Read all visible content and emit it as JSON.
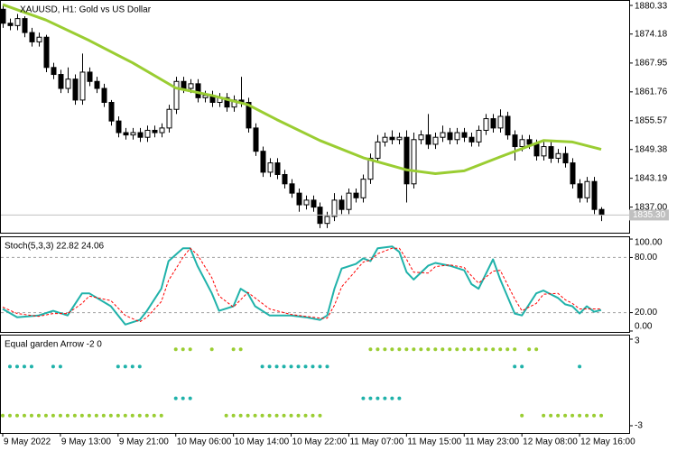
{
  "chart_data": [
    {
      "type": "candlestick",
      "title": "XAUUSD, H1:  Gold vs US Dollar",
      "xlim": [
        -0.25,
        86.875
      ],
      "ylim": [
        1831.5,
        1881.3
      ],
      "yticks": [
        1880.33,
        1874.18,
        1867.95,
        1861.76,
        1855.57,
        1849.38,
        1843.19,
        {
          "value": 1837,
          "label": "1837.00"
        }
      ],
      "xticks": [
        {
          "value": 0,
          "label": "9 May 2022"
        },
        {
          "value": 8,
          "label": "9 May 13:00"
        },
        {
          "value": 16,
          "label": "9 May 21:00"
        },
        {
          "value": 24,
          "label": "10 May 06:00"
        },
        {
          "value": 32,
          "label": "10 May 14:00"
        },
        {
          "value": 40,
          "label": "10 May 22:00"
        },
        {
          "value": 48,
          "label": "11 May 07:00"
        },
        {
          "value": 56,
          "label": "11 May 15:00"
        },
        {
          "value": 64,
          "label": "11 May 23:00"
        },
        {
          "value": 72,
          "label": "12 May 08:00"
        },
        {
          "value": 80,
          "label": "12 May 16:00"
        }
      ],
      "up_color": "#ffffff",
      "down_color": "#000000",
      "open": [
        1879.5,
        1876.5,
        1876.0,
        1877.5,
        1874.5,
        1872.5,
        1873.5,
        1867.0,
        1865.5,
        1862.5,
        1864.5,
        1860.0,
        1866.0,
        1864.0,
        1862.5,
        1859.5,
        1855.5,
        1853.0,
        1852.5,
        1853.0,
        1852.0,
        1853.5,
        1853.0,
        1854.0,
        1858.0,
        1864.0,
        1862.5,
        1863.5,
        1860.5,
        1861.0,
        1859.5,
        1860.5,
        1858.5,
        1860.0,
        1859.5,
        1854.0,
        1849.0,
        1844.5,
        1846.5,
        1844.0,
        1842.0,
        1840.0,
        1837.5,
        1838.5,
        1837.0,
        1833.5,
        1835.0,
        1838.5,
        1836.5,
        1840.0,
        1839.0,
        1843.0,
        1847.5,
        1851.0,
        1852.0,
        1851.5,
        1852.0,
        1842.0,
        1851.5,
        1852.5,
        1850.5,
        1852.0,
        1853.0,
        1851.5,
        1853.0,
        1852.0,
        1851.0,
        1853.5,
        1856.0,
        1854.0,
        1856.5,
        1852.5,
        1850.0,
        1851.5,
        1850.5,
        1848.0,
        1850.0,
        1847.5,
        1848.5,
        1846.5,
        1842.0,
        1839.0,
        1842.5,
        1836.5
      ],
      "high": [
        1880.5,
        1877.5,
        1878.5,
        1878.0,
        1875.5,
        1874.5,
        1874.0,
        1868.0,
        1866.5,
        1867.0,
        1865.5,
        1870.0,
        1867.0,
        1865.0,
        1863.5,
        1860.0,
        1856.5,
        1854.0,
        1854.0,
        1854.0,
        1854.5,
        1854.5,
        1855.0,
        1859.0,
        1865.0,
        1865.0,
        1864.5,
        1864.5,
        1862.0,
        1862.0,
        1861.5,
        1861.5,
        1861.0,
        1865.0,
        1860.5,
        1855.0,
        1850.0,
        1847.5,
        1847.5,
        1845.0,
        1843.0,
        1841.0,
        1839.5,
        1839.5,
        1838.0,
        1836.0,
        1840.0,
        1839.5,
        1841.0,
        1841.0,
        1844.0,
        1848.5,
        1852.5,
        1853.0,
        1853.5,
        1853.0,
        1853.5,
        1853.0,
        1853.5,
        1857.0,
        1853.0,
        1854.5,
        1854.0,
        1854.0,
        1854.0,
        1853.0,
        1854.5,
        1857.0,
        1857.0,
        1858.0,
        1857.5,
        1853.5,
        1852.5,
        1852.5,
        1851.5,
        1851.0,
        1851.0,
        1849.5,
        1850.0,
        1847.5,
        1843.0,
        1843.5,
        1843.5,
        1837.0
      ],
      "low": [
        1875.5,
        1875.0,
        1875.0,
        1873.5,
        1871.5,
        1871.5,
        1866.0,
        1864.5,
        1861.5,
        1861.5,
        1859.0,
        1859.0,
        1863.0,
        1861.5,
        1858.5,
        1854.5,
        1852.0,
        1851.5,
        1851.5,
        1851.0,
        1851.0,
        1852.0,
        1852.0,
        1853.0,
        1857.0,
        1861.5,
        1861.5,
        1859.5,
        1859.5,
        1858.5,
        1858.5,
        1857.5,
        1857.5,
        1858.5,
        1853.0,
        1848.0,
        1843.5,
        1843.5,
        1843.0,
        1841.0,
        1839.0,
        1836.0,
        1836.5,
        1836.0,
        1832.5,
        1832.5,
        1834.0,
        1835.5,
        1835.5,
        1838.0,
        1838.0,
        1842.0,
        1846.5,
        1850.0,
        1850.5,
        1850.5,
        1838.0,
        1841.0,
        1850.5,
        1849.5,
        1849.5,
        1851.0,
        1850.5,
        1850.5,
        1851.0,
        1850.0,
        1850.0,
        1852.5,
        1853.0,
        1853.0,
        1851.5,
        1847.0,
        1849.0,
        1849.5,
        1847.0,
        1847.0,
        1846.5,
        1846.5,
        1845.5,
        1841.0,
        1838.0,
        1838.0,
        1835.5,
        1834.0
      ],
      "close": [
        1876.5,
        1876.0,
        1877.5,
        1874.5,
        1872.5,
        1873.5,
        1867.0,
        1865.5,
        1862.5,
        1864.5,
        1860.0,
        1866.0,
        1864.0,
        1862.5,
        1859.5,
        1855.5,
        1853.0,
        1852.5,
        1853.0,
        1852.0,
        1853.5,
        1853.0,
        1854.0,
        1858.0,
        1864.0,
        1862.5,
        1863.5,
        1860.5,
        1861.0,
        1859.5,
        1860.5,
        1858.5,
        1860.0,
        1859.5,
        1854.0,
        1849.0,
        1844.5,
        1846.5,
        1844.0,
        1842.0,
        1840.0,
        1837.5,
        1838.5,
        1837.0,
        1833.5,
        1835.0,
        1838.5,
        1836.5,
        1840.0,
        1839.0,
        1843.0,
        1847.5,
        1851.0,
        1852.0,
        1851.5,
        1852.0,
        1842.0,
        1851.5,
        1852.5,
        1850.5,
        1852.0,
        1853.0,
        1851.5,
        1853.0,
        1852.0,
        1851.0,
        1853.5,
        1856.0,
        1854.0,
        1856.5,
        1852.5,
        1850.0,
        1851.5,
        1850.5,
        1848.0,
        1850.0,
        1847.5,
        1848.5,
        1846.5,
        1842.0,
        1839.0,
        1842.5,
        1836.5,
        1835.3
      ],
      "last_price": {
        "value": 1835.3,
        "label": "1835.30"
      },
      "series": [
        {
          "color": "#9acd32",
          "x": [
            0,
            6,
            12,
            18,
            24,
            29,
            34,
            38,
            44,
            50,
            56,
            60,
            64,
            69,
            75,
            79,
            83
          ],
          "values": [
            1880.5,
            1877.2,
            1872.8,
            1868.0,
            1862.6,
            1861.0,
            1859.0,
            1855.8,
            1851.3,
            1847.6,
            1845.0,
            1844.2,
            1844.8,
            1847.8,
            1851.3,
            1851.0,
            1849.4
          ]
        }
      ]
    },
    {
      "type": "line",
      "title": "Stoch(5,3,3) 22.82 24.06",
      "ylim": [
        -1,
        102
      ],
      "yticks": [
        {
          "value": 100,
          "label": "100.00"
        },
        {
          "value": 80,
          "label": "80.00"
        },
        {
          "value": 20,
          "label": "20.00"
        },
        {
          "value": 0,
          "label": "0.00"
        }
      ],
      "levels": [
        80,
        20
      ],
      "x": [
        0,
        2,
        5,
        7,
        9,
        11,
        12,
        15,
        17,
        19,
        20,
        22,
        23,
        25,
        26,
        27,
        29,
        30,
        32,
        33,
        34,
        35,
        37,
        40,
        42,
        44,
        45,
        46,
        47,
        49,
        50,
        51,
        52,
        54,
        55,
        56,
        57,
        59,
        60,
        62,
        64,
        65,
        66,
        68,
        69,
        71,
        72,
        74,
        75,
        77,
        78,
        79,
        80,
        81,
        82,
        83
      ],
      "series": [
        {
          "color": "#20b2aa",
          "dashed": false,
          "values": [
            24,
            15,
            17,
            22,
            17,
            41,
            41,
            27,
            7,
            12,
            22,
            46,
            76,
            90,
            90,
            71,
            41,
            22,
            27,
            46,
            41,
            27,
            17,
            17,
            15,
            12,
            17,
            46,
            68,
            73,
            79,
            76,
            90,
            92,
            86,
            64,
            56,
            71,
            74,
            71,
            66,
            51,
            46,
            78,
            56,
            19,
            17,
            41,
            44,
            36,
            29,
            27,
            19,
            27,
            21,
            22.82
          ]
        },
        {
          "color": "#ff0000",
          "dashed": true,
          "values": [
            26,
            19,
            16,
            19,
            19,
            30,
            38,
            33,
            17,
            10,
            15,
            32,
            55,
            80,
            90,
            83,
            58,
            38,
            26,
            34,
            42,
            36,
            24,
            18,
            16,
            14,
            14,
            28,
            48,
            66,
            75,
            77,
            84,
            90,
            90,
            78,
            64,
            63,
            70,
            72,
            69,
            60,
            52,
            65,
            66,
            35,
            22,
            30,
            40,
            41,
            34,
            30,
            24,
            24,
            24,
            24.06
          ]
        }
      ]
    },
    {
      "type": "scatter",
      "title": "Equal garden Arrow -2 0",
      "ylim": [
        -3.5,
        3.25
      ],
      "yticks": [
        3,
        -3
      ],
      "series": [
        {
          "color": "#9acd32",
          "x": [
            24,
            25,
            26,
            29,
            32,
            33,
            51,
            52,
            53,
            54,
            55,
            56,
            57,
            58,
            59,
            60,
            61,
            62,
            63,
            64,
            65,
            66,
            67,
            68,
            69,
            70,
            71,
            73,
            74
          ],
          "values": [
            2.3,
            2.3,
            2.3,
            2.3,
            2.3,
            2.3,
            2.3,
            2.3,
            2.3,
            2.3,
            2.3,
            2.3,
            2.3,
            2.3,
            2.3,
            2.3,
            2.3,
            2.3,
            2.3,
            2.3,
            2.3,
            2.3,
            2.3,
            2.3,
            2.3,
            2.3,
            2.3,
            2.3,
            2.3
          ]
        },
        {
          "color": "#20b2aa",
          "x": [
            1,
            2,
            3,
            4,
            7,
            8,
            16,
            17,
            18,
            19,
            36,
            37,
            38,
            39,
            40,
            41,
            42,
            43,
            44,
            45,
            71,
            72,
            80
          ],
          "values": [
            1.1,
            1.1,
            1.1,
            1.1,
            1.1,
            1.1,
            1.1,
            1.1,
            1.1,
            1.1,
            1.1,
            1.1,
            1.1,
            1.1,
            1.1,
            1.1,
            1.1,
            1.1,
            1.1,
            1.1,
            1.1,
            1.1,
            1.1
          ]
        },
        {
          "color": "#20b2aa",
          "x": [
            24,
            25,
            26,
            50,
            51,
            52,
            53,
            54,
            55
          ],
          "values": [
            -1.1,
            -1.1,
            -1.1,
            -1.1,
            -1.1,
            -1.1,
            -1.1,
            -1.1,
            -1.1
          ]
        },
        {
          "color": "#9acd32",
          "x": [
            0,
            1,
            2,
            3,
            4,
            5,
            6,
            7,
            8,
            9,
            10,
            11,
            12,
            13,
            14,
            15,
            16,
            17,
            18,
            19,
            20,
            21,
            22,
            31,
            32,
            33,
            34,
            35,
            36,
            37,
            38,
            39,
            40,
            41,
            42,
            43,
            44,
            72,
            75,
            76,
            77,
            78,
            79,
            80,
            81,
            82,
            83
          ],
          "values": [
            -2.3,
            -2.3,
            -2.3,
            -2.3,
            -2.3,
            -2.3,
            -2.3,
            -2.3,
            -2.3,
            -2.3,
            -2.3,
            -2.3,
            -2.3,
            -2.3,
            -2.3,
            -2.3,
            -2.3,
            -2.3,
            -2.3,
            -2.3,
            -2.3,
            -2.3,
            -2.3,
            -2.3,
            -2.3,
            -2.3,
            -2.3,
            -2.3,
            -2.3,
            -2.3,
            -2.3,
            -2.3,
            -2.3,
            -2.3,
            -2.3,
            -2.3,
            -2.3,
            -2.3,
            -2.3,
            -2.3,
            -2.3,
            -2.3,
            -2.3,
            -2.3,
            -2.3,
            -2.3,
            -2.3
          ]
        }
      ]
    }
  ]
}
